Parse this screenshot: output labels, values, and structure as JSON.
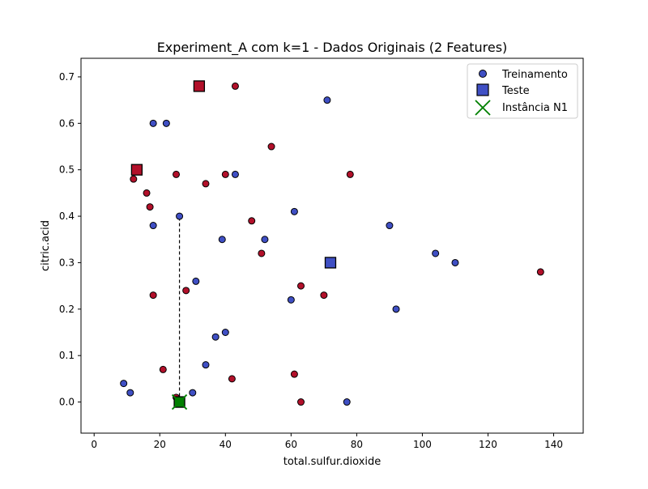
{
  "chart_data": {
    "type": "scatter",
    "title": "Experiment_A com k=1 - Dados Originais (2 Features)",
    "xlabel": "total.sulfur.dioxide",
    "ylabel": "citric.acid",
    "xlim": [
      -4,
      149
    ],
    "ylim": [
      -0.067,
      0.74
    ],
    "xticks": [
      0,
      20,
      40,
      60,
      80,
      100,
      120,
      140
    ],
    "yticks": [
      0.0,
      0.1,
      0.2,
      0.3,
      0.4,
      0.5,
      0.6,
      0.7
    ],
    "xtick_labels": [
      "0",
      "20",
      "40",
      "60",
      "80",
      "100",
      "120",
      "140"
    ],
    "ytick_labels": [
      "0.0",
      "0.1",
      "0.2",
      "0.3",
      "0.4",
      "0.5",
      "0.6",
      "0.7"
    ],
    "grid": false,
    "legend_position": "top-right",
    "colors": {
      "blue": "#3f4fc4",
      "red": "#b2102a",
      "green": "#008000"
    },
    "legend": [
      {
        "label": "Treinamento",
        "marker": "circle"
      },
      {
        "label": "Teste",
        "marker": "square"
      },
      {
        "label": "Instância N1",
        "marker": "x"
      }
    ],
    "series": [
      {
        "name": "Treinamento",
        "marker": "circle",
        "points": [
          {
            "x": 18,
            "y": 0.6,
            "cls": "blue"
          },
          {
            "x": 22,
            "y": 0.6,
            "cls": "blue"
          },
          {
            "x": 71,
            "y": 0.65,
            "cls": "blue"
          },
          {
            "x": 43,
            "y": 0.49,
            "cls": "blue"
          },
          {
            "x": 26,
            "y": 0.4,
            "cls": "blue"
          },
          {
            "x": 18,
            "y": 0.38,
            "cls": "blue"
          },
          {
            "x": 61,
            "y": 0.41,
            "cls": "blue"
          },
          {
            "x": 39,
            "y": 0.35,
            "cls": "blue"
          },
          {
            "x": 52,
            "y": 0.35,
            "cls": "blue"
          },
          {
            "x": 90,
            "y": 0.38,
            "cls": "blue"
          },
          {
            "x": 104,
            "y": 0.32,
            "cls": "blue"
          },
          {
            "x": 110,
            "y": 0.3,
            "cls": "blue"
          },
          {
            "x": 31,
            "y": 0.26,
            "cls": "blue"
          },
          {
            "x": 60,
            "y": 0.22,
            "cls": "blue"
          },
          {
            "x": 92,
            "y": 0.2,
            "cls": "blue"
          },
          {
            "x": 37,
            "y": 0.14,
            "cls": "blue"
          },
          {
            "x": 40,
            "y": 0.15,
            "cls": "blue"
          },
          {
            "x": 34,
            "y": 0.08,
            "cls": "blue"
          },
          {
            "x": 9,
            "y": 0.04,
            "cls": "blue"
          },
          {
            "x": 11,
            "y": 0.02,
            "cls": "blue"
          },
          {
            "x": 30,
            "y": 0.02,
            "cls": "blue"
          },
          {
            "x": 77,
            "y": 0.0,
            "cls": "blue"
          },
          {
            "x": 43,
            "y": 0.68,
            "cls": "red"
          },
          {
            "x": 54,
            "y": 0.55,
            "cls": "red"
          },
          {
            "x": 12,
            "y": 0.48,
            "cls": "red"
          },
          {
            "x": 25,
            "y": 0.49,
            "cls": "red"
          },
          {
            "x": 40,
            "y": 0.49,
            "cls": "red"
          },
          {
            "x": 78,
            "y": 0.49,
            "cls": "red"
          },
          {
            "x": 34,
            "y": 0.47,
            "cls": "red"
          },
          {
            "x": 16,
            "y": 0.45,
            "cls": "red"
          },
          {
            "x": 17,
            "y": 0.42,
            "cls": "red"
          },
          {
            "x": 48,
            "y": 0.39,
            "cls": "red"
          },
          {
            "x": 51,
            "y": 0.32,
            "cls": "red"
          },
          {
            "x": 136,
            "y": 0.28,
            "cls": "red"
          },
          {
            "x": 63,
            "y": 0.25,
            "cls": "red"
          },
          {
            "x": 28,
            "y": 0.24,
            "cls": "red"
          },
          {
            "x": 18,
            "y": 0.23,
            "cls": "red"
          },
          {
            "x": 70,
            "y": 0.23,
            "cls": "red"
          },
          {
            "x": 21,
            "y": 0.07,
            "cls": "red"
          },
          {
            "x": 61,
            "y": 0.06,
            "cls": "red"
          },
          {
            "x": 42,
            "y": 0.05,
            "cls": "red"
          },
          {
            "x": 25,
            "y": 0.01,
            "cls": "red"
          },
          {
            "x": 63,
            "y": 0.0,
            "cls": "red"
          }
        ]
      },
      {
        "name": "Teste",
        "marker": "square",
        "points": [
          {
            "x": 32,
            "y": 0.68,
            "cls": "red"
          },
          {
            "x": 13,
            "y": 0.5,
            "cls": "red"
          },
          {
            "x": 72,
            "y": 0.3,
            "cls": "blue"
          },
          {
            "x": 26,
            "y": 0.0,
            "cls": "green"
          }
        ]
      },
      {
        "name": "Instância N1",
        "marker": "x",
        "points": [
          {
            "x": 26,
            "y": 0.0,
            "cls": "green"
          }
        ]
      }
    ],
    "neighbor_line": {
      "from": {
        "x": 26,
        "y": 0.0
      },
      "to": {
        "x": 26,
        "y": 0.4
      }
    }
  }
}
